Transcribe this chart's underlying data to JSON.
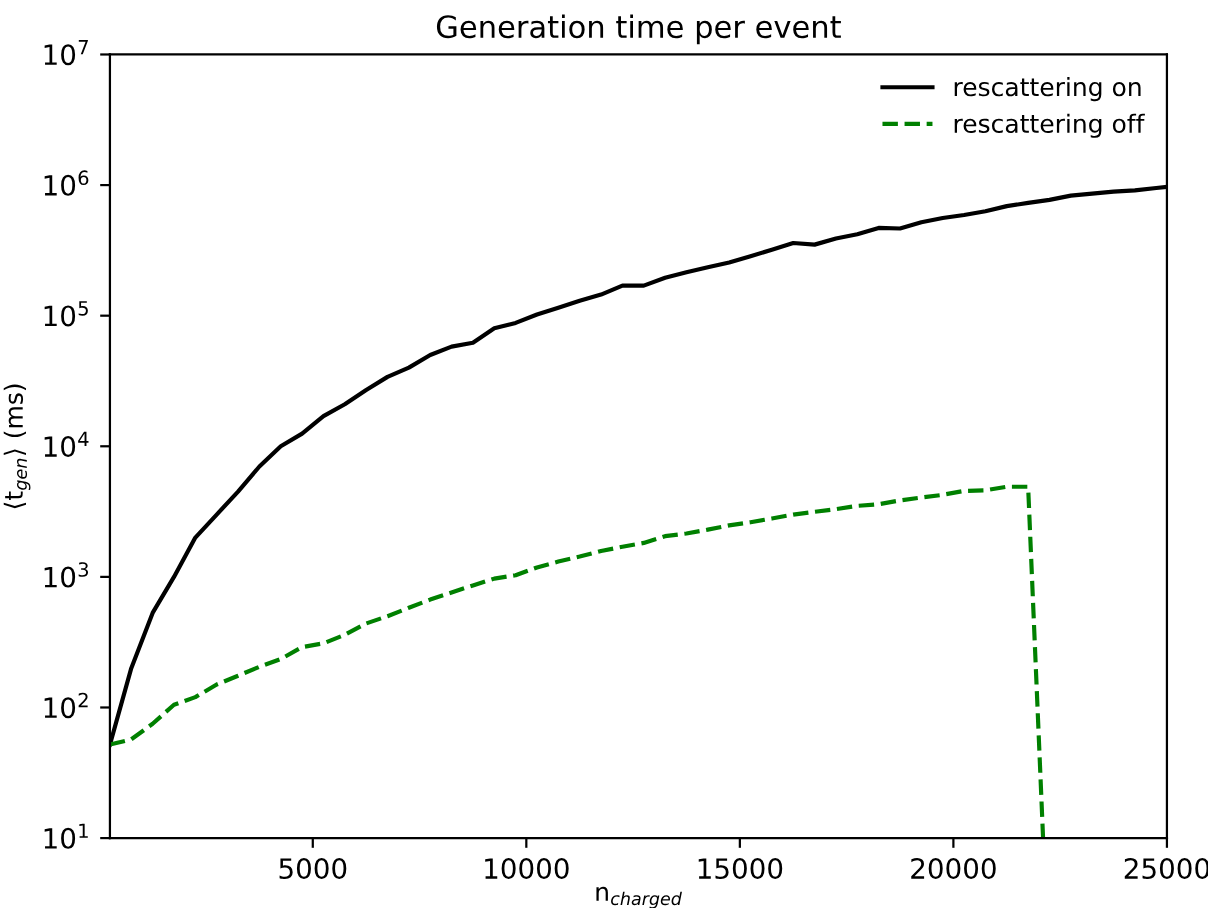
{
  "chart_data": {
    "type": "line",
    "title": "Generation time per event",
    "xlabel": "n$_{charged}$",
    "ylabel": "⟨t$_{gen}$⟩ (ms)",
    "log": "y",
    "legend": "top right",
    "grid": false,
    "xlim": [
      250,
      25000
    ],
    "xticks": [
      5000,
      10000,
      15000,
      20000,
      25000
    ],
    "ylim": [
      10,
      10000000
    ],
    "yticks": [
      {
        "value": 10,
        "label": "10$^{1}$"
      },
      {
        "value": 100,
        "label": "10$^{2}$"
      },
      {
        "value": 1000,
        "label": "10$^{3}$"
      },
      {
        "value": 10000,
        "label": "10$^{4}$"
      },
      {
        "value": 100000,
        "label": "10$^{5}$"
      },
      {
        "value": 1000000,
        "label": "10$^{6}$"
      },
      {
        "value": 10000000,
        "label": "10$^{7}$"
      }
    ],
    "series": [
      {
        "name": "rescattering on",
        "color": "#000000",
        "line_style": "solid",
        "x": [
          250,
          750,
          1250,
          1750,
          2250,
          2750,
          3250,
          3750,
          4250,
          4750,
          5250,
          5750,
          6250,
          6750,
          7250,
          7750,
          8250,
          8750,
          9250,
          9750,
          10250,
          10750,
          11250,
          11750,
          12250,
          12750,
          13250,
          13750,
          14250,
          14750,
          15250,
          15750,
          16250,
          16750,
          17250,
          17750,
          18250,
          18750,
          19250,
          19750,
          20250,
          20750,
          21250,
          21750,
          22250,
          22750,
          23250,
          23750,
          24250,
          24750,
          25000
        ],
        "values": [
          52,
          200,
          530,
          1000,
          2000,
          3000,
          4500,
          7000,
          10000,
          12500,
          17000,
          21000,
          27000,
          34000,
          40000,
          50000,
          58000,
          62000,
          80000,
          88000,
          102000,
          115000,
          130000,
          145000,
          170000,
          170000,
          195000,
          215000,
          235000,
          255000,
          285000,
          320000,
          360000,
          350000,
          390000,
          420000,
          470000,
          465000,
          520000,
          560000,
          590000,
          630000,
          690000,
          730000,
          770000,
          830000,
          860000,
          890000,
          910000,
          950000,
          970000
        ]
      },
      {
        "name": "rescattering off",
        "color": "#008000",
        "line_style": "dashed",
        "x": [
          250,
          750,
          1250,
          1750,
          2250,
          2750,
          3250,
          3750,
          4250,
          4750,
          5250,
          5750,
          6250,
          6750,
          7250,
          7750,
          8250,
          8750,
          9250,
          9750,
          10250,
          10750,
          11250,
          11750,
          12250,
          12750,
          13250,
          13750,
          14250,
          14750,
          15250,
          15750,
          16250,
          16750,
          17250,
          17750,
          18250,
          18750,
          19250,
          19750,
          20250,
          20750,
          21250,
          21750,
          22100
        ],
        "values": [
          52,
          57,
          75,
          105,
          120,
          150,
          175,
          205,
          235,
          290,
          310,
          360,
          440,
          500,
          580,
          670,
          760,
          860,
          970,
          1030,
          1180,
          1310,
          1430,
          1580,
          1700,
          1820,
          2050,
          2150,
          2300,
          2480,
          2620,
          2800,
          3000,
          3150,
          3300,
          3500,
          3600,
          3850,
          4050,
          4250,
          4550,
          4600,
          4900,
          4900,
          10
        ]
      }
    ]
  }
}
